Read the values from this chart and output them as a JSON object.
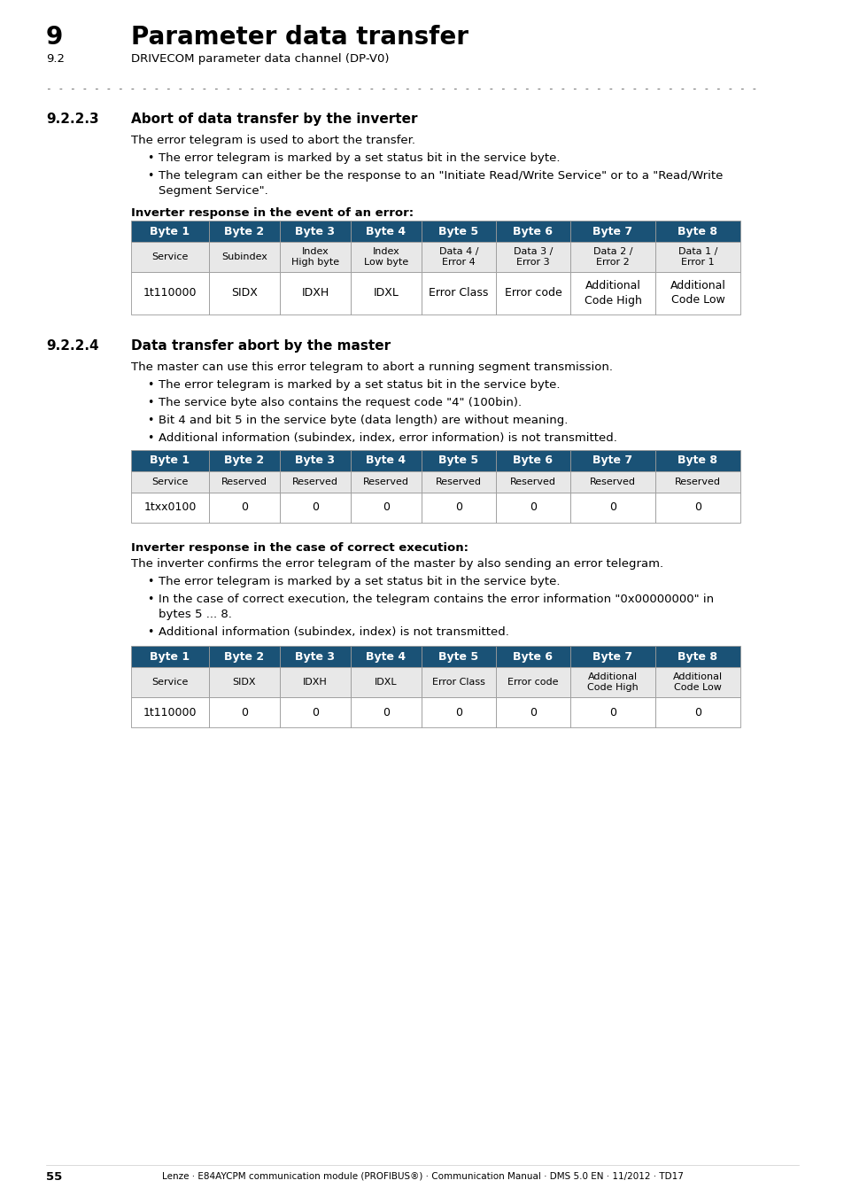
{
  "page_num": "55",
  "chapter_num": "9",
  "chapter_title": "Parameter data transfer",
  "section_num": "9.2",
  "section_title": "DRIVECOM parameter data channel (DP-V0)",
  "footer_text": "Lenze · E84AYCPM communication module (PROFIBUS®) · Communication Manual · DMS 5.0 EN · 11/2012 · TD17",
  "subsection1_num": "9.2.2.3",
  "subsection1_title": "Abort of data transfer by the inverter",
  "subsection1_intro": "The error telegram is used to abort the transfer.",
  "subsection1_bullet1": "The error telegram is marked by a set status bit in the service byte.",
  "subsection1_bullet2a": "The telegram can either be the response to an \"Initiate Read/Write Service\" or to a \"Read/Write",
  "subsection1_bullet2b": "Segment Service\".",
  "subsection1_table_label": "Inverter response in the event of an error:",
  "table1_headers": [
    "Byte 1",
    "Byte 2",
    "Byte 3",
    "Byte 4",
    "Byte 5",
    "Byte 6",
    "Byte 7",
    "Byte 8"
  ],
  "table1_row1": [
    "Service",
    "Subindex",
    "Index\nHigh byte",
    "Index\nLow byte",
    "Data 4 /\nError 4",
    "Data 3 /\nError 3",
    "Data 2 /\nError 2",
    "Data 1 /\nError 1"
  ],
  "table1_row2": [
    "1t110000",
    "SIDX",
    "IDXH",
    "IDXL",
    "Error Class",
    "Error code",
    "Additional\nCode High",
    "Additional\nCode Low"
  ],
  "subsection2_num": "9.2.2.4",
  "subsection2_title": "Data transfer abort by the master",
  "subsection2_intro": "The master can use this error telegram to abort a running segment transmission.",
  "subsection2_bullet1": "The error telegram is marked by a set status bit in the service byte.",
  "subsection2_bullet2": "The service byte also contains the request code \"4\" (100bin).",
  "subsection2_bullet3": "Bit 4 and bit 5 in the service byte (data length) are without meaning.",
  "subsection2_bullet4": "Additional information (subindex, index, error information) is not transmitted.",
  "table2_headers": [
    "Byte 1",
    "Byte 2",
    "Byte 3",
    "Byte 4",
    "Byte 5",
    "Byte 6",
    "Byte 7",
    "Byte 8"
  ],
  "table2_row1": [
    "Service",
    "Reserved",
    "Reserved",
    "Reserved",
    "Reserved",
    "Reserved",
    "Reserved",
    "Reserved"
  ],
  "table2_row2": [
    "1txx0100",
    "0",
    "0",
    "0",
    "0",
    "0",
    "0",
    "0"
  ],
  "subsection2_table_label2": "Inverter response in the case of correct execution:",
  "subsection2_intro2": "The inverter confirms the error telegram of the master by also sending an error telegram.",
  "subsection2_b2_bullet1": "The error telegram is marked by a set status bit in the service byte.",
  "subsection2_b2_bullet2a": "In the case of correct execution, the telegram contains the error information \"0x00000000\" in",
  "subsection2_b2_bullet2b": "bytes 5 ... 8.",
  "subsection2_b2_bullet3": "Additional information (subindex, index) is not transmitted.",
  "table3_headers": [
    "Byte 1",
    "Byte 2",
    "Byte 3",
    "Byte 4",
    "Byte 5",
    "Byte 6",
    "Byte 7",
    "Byte 8"
  ],
  "table3_row1": [
    "Service",
    "SIDX",
    "IDXH",
    "IDXL",
    "Error Class",
    "Error code",
    "Additional\nCode High",
    "Additional\nCode Low"
  ],
  "table3_row2": [
    "1t110000",
    "0",
    "0",
    "0",
    "0",
    "0",
    "0",
    "0"
  ],
  "header_color": "#1a5276",
  "header_text_color": "#ffffff",
  "row1_color": "#e8e8e8",
  "row2_color": "#ffffff",
  "bg_color": "#ffffff",
  "text_color": "#000000"
}
